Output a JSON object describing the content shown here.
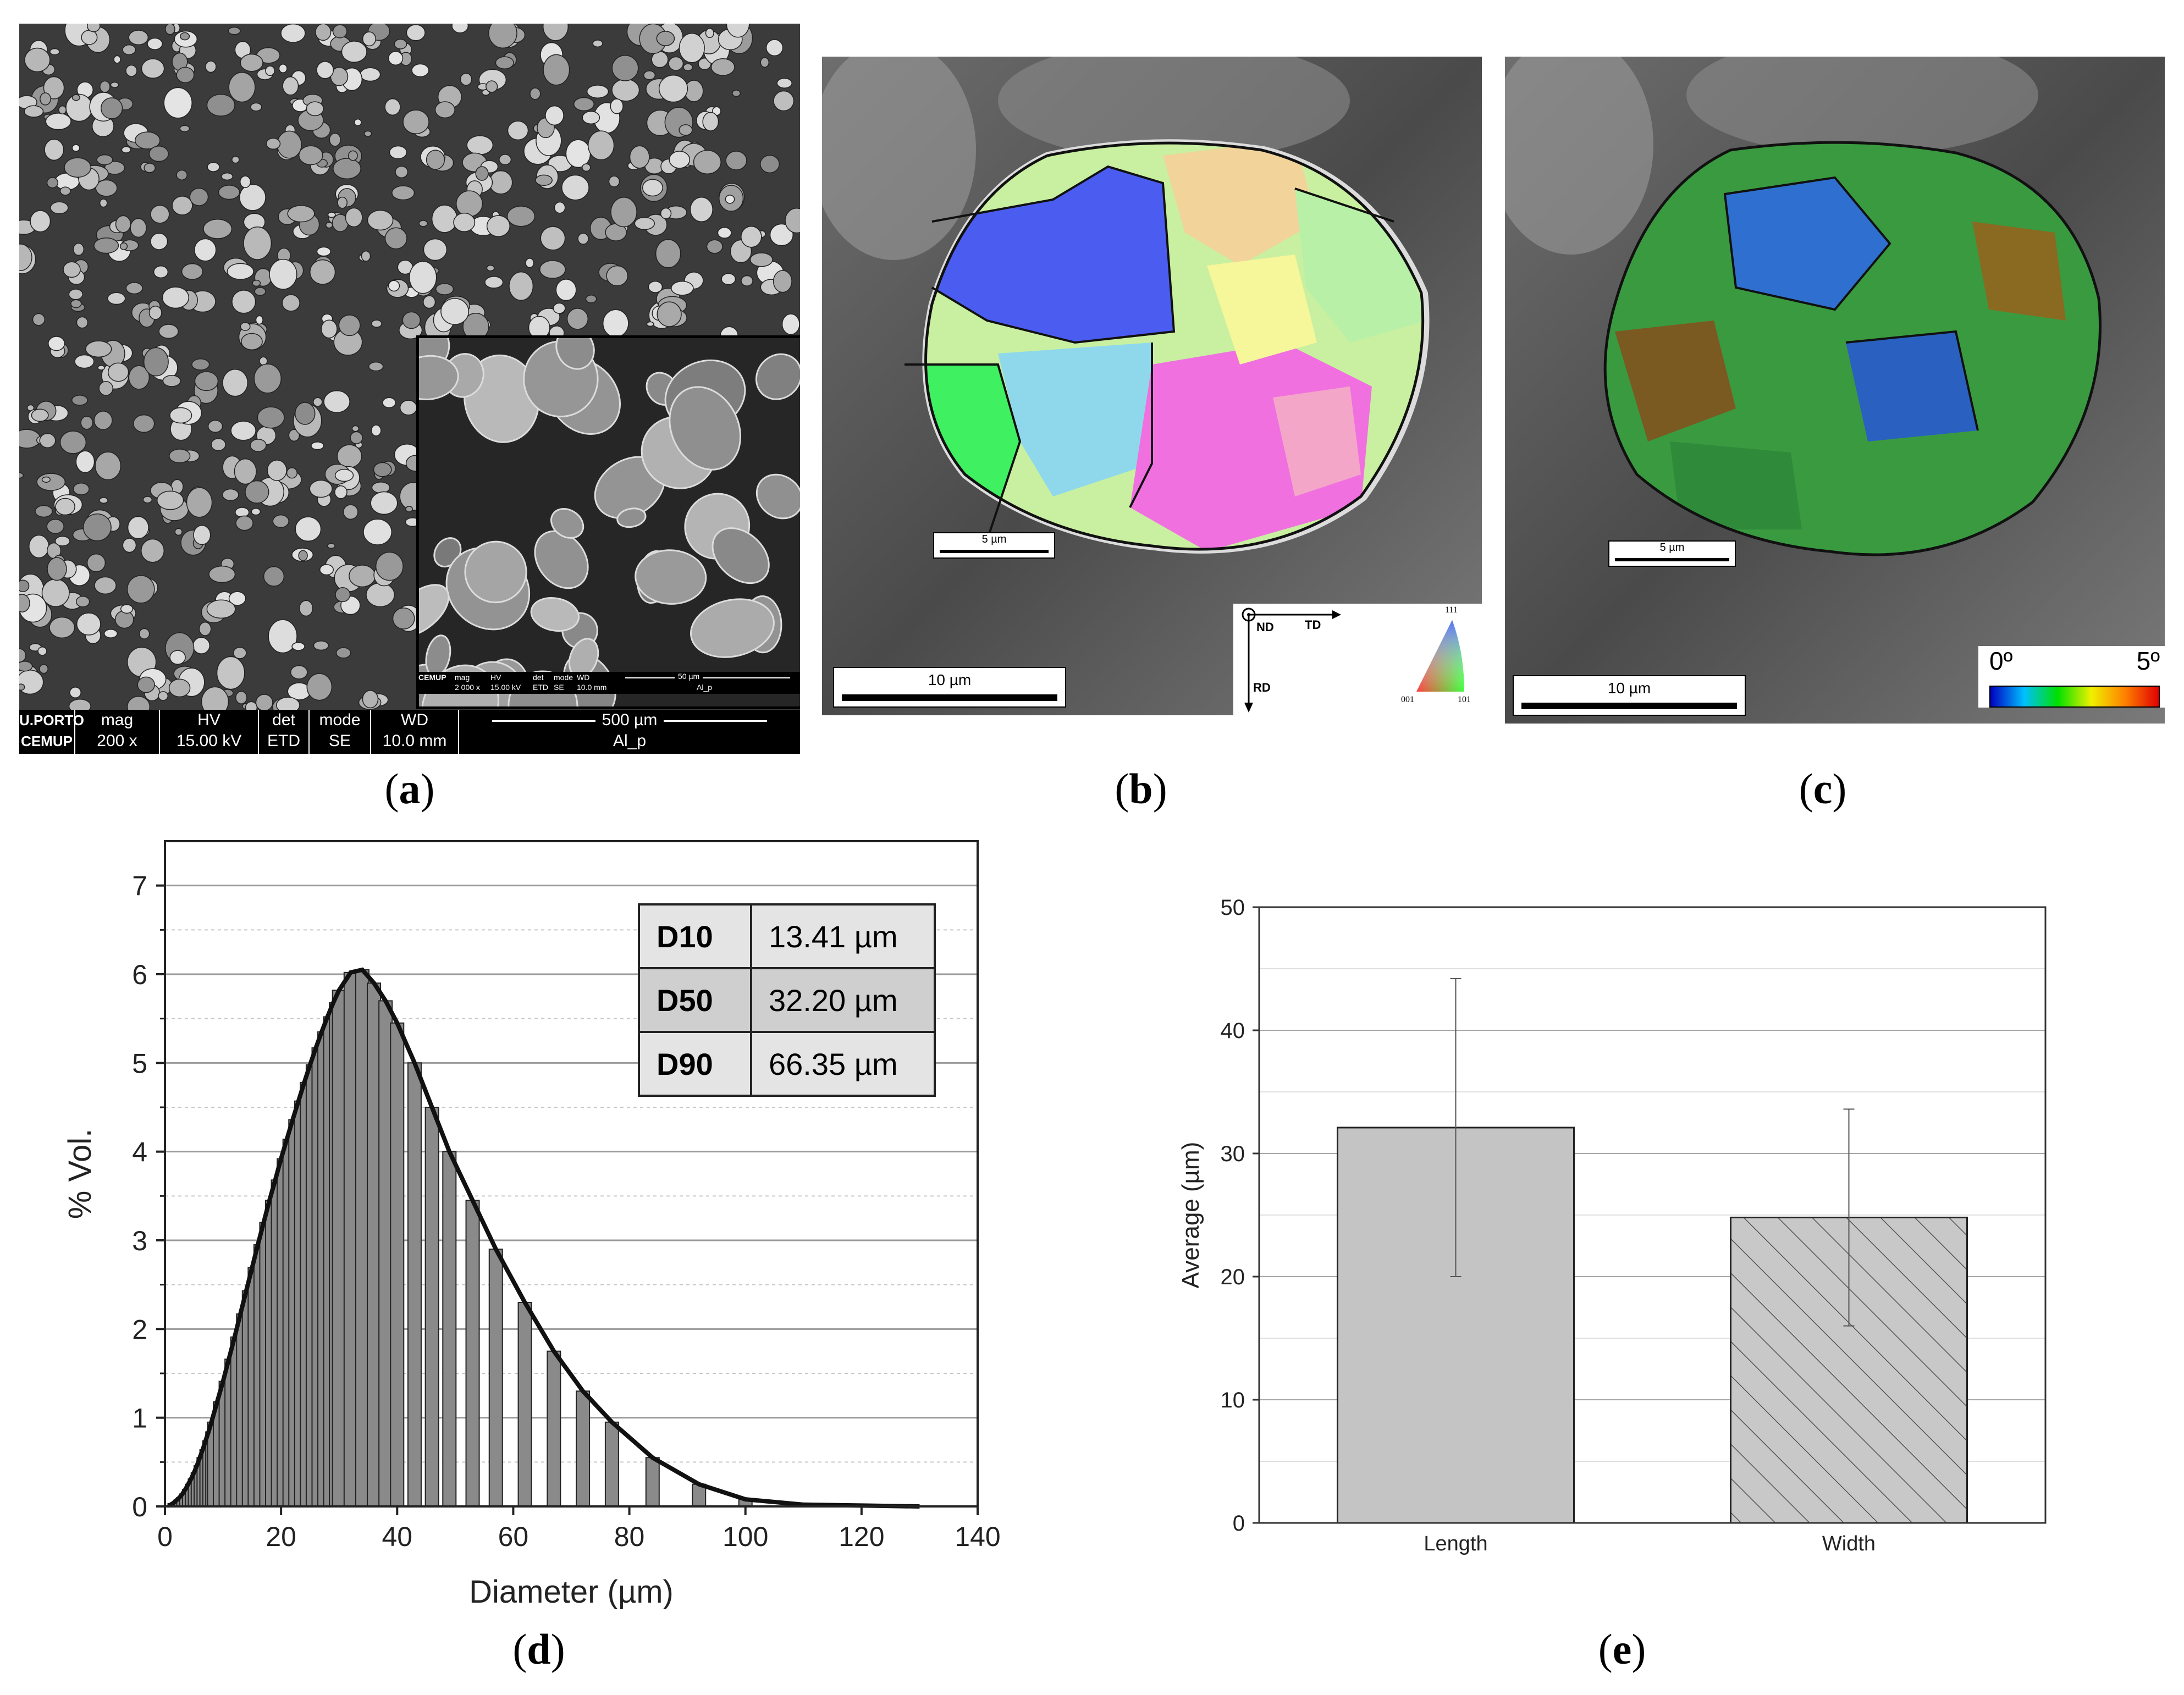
{
  "captions": {
    "a": "a",
    "b": "b",
    "c": "c",
    "d": "d",
    "e": "e"
  },
  "panel_a": {
    "logo_top": "U.PORTO",
    "logo_bottom": "CEMUP",
    "labels": [
      "mag",
      "HV",
      "det",
      "mode",
      "WD"
    ],
    "values": [
      "200 x",
      "15.00 kV",
      "ETD",
      "SE",
      "10.0 mm"
    ],
    "scale": "500 µm",
    "sample": "Al_p",
    "inset": {
      "logo": "CEMUP",
      "labels": [
        "mag",
        "HV",
        "det",
        "mode",
        "WD"
      ],
      "values": [
        "2 000 x",
        "15.00 kV",
        "ETD",
        "SE",
        "10.0 mm"
      ],
      "scale": "50 µm",
      "sample": "Al_p"
    }
  },
  "panel_b": {
    "scale_small": "5 µm",
    "scale_large": "10 µm",
    "axes": {
      "nd": "ND",
      "td": "TD",
      "rd": "RD"
    },
    "ipf": {
      "top": "111",
      "left": "001",
      "right": "101"
    }
  },
  "panel_c": {
    "scale_small": "5 µm",
    "scale_large": "10 µm",
    "colorbar_min": "0º",
    "colorbar_max": "5º"
  },
  "chart_data": [
    {
      "type": "bar",
      "panel": "d",
      "xlabel": "Diameter (µm)",
      "ylabel": "% Vol.",
      "xlim": [
        0,
        140
      ],
      "ylim": [
        0,
        7.5
      ],
      "xticks": [
        "0",
        "20",
        "40",
        "60",
        "80",
        "100",
        "120",
        "140"
      ],
      "yticks": [
        "0",
        "1",
        "2",
        "3",
        "4",
        "5",
        "6",
        "7"
      ],
      "x": [
        0.5,
        1,
        1.5,
        2,
        2.5,
        3,
        3.5,
        4,
        4.5,
        5,
        5.5,
        6,
        6.5,
        7,
        7.5,
        8,
        9,
        10,
        11,
        12,
        13,
        14,
        15,
        16,
        17,
        18,
        19,
        20,
        21,
        22,
        23,
        24,
        25,
        26,
        27,
        28,
        29,
        30,
        32,
        34,
        36,
        38,
        40,
        43,
        46,
        49,
        53,
        57,
        62,
        67,
        72,
        77,
        84,
        92,
        100,
        110,
        120,
        130
      ],
      "values": [
        0.01,
        0.02,
        0.04,
        0.07,
        0.1,
        0.14,
        0.19,
        0.25,
        0.31,
        0.38,
        0.46,
        0.55,
        0.64,
        0.74,
        0.84,
        0.95,
        1.18,
        1.41,
        1.66,
        1.91,
        2.17,
        2.43,
        2.69,
        2.95,
        3.2,
        3.45,
        3.68,
        3.92,
        4.14,
        4.36,
        4.57,
        4.78,
        4.98,
        5.17,
        5.35,
        5.52,
        5.68,
        5.82,
        6.02,
        6.05,
        5.9,
        5.7,
        5.45,
        5.0,
        4.5,
        4.0,
        3.45,
        2.9,
        2.3,
        1.75,
        1.3,
        0.95,
        0.55,
        0.25,
        0.08,
        0.02,
        0.01,
        0.0
      ],
      "table": [
        {
          "key": "D10",
          "value": "13.41 µm"
        },
        {
          "key": "D50",
          "value": "32.20 µm"
        },
        {
          "key": "D90",
          "value": "66.35 µm"
        }
      ]
    },
    {
      "type": "bar",
      "panel": "e",
      "categories": [
        "Length",
        "Width"
      ],
      "values": [
        32.1,
        24.8
      ],
      "errors": [
        12.1,
        8.8
      ],
      "ylabel": "Average (µm)",
      "xlabel": "",
      "ylim": [
        0,
        50
      ],
      "yticks": [
        "0",
        "10",
        "20",
        "30",
        "40",
        "50"
      ]
    }
  ]
}
